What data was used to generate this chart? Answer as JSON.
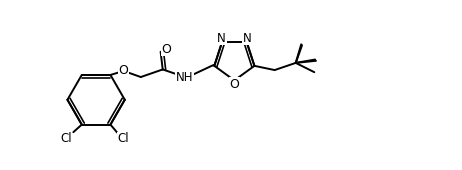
{
  "background_color": "#ffffff",
  "line_color": "#000000",
  "line_width": 1.4,
  "font_size": 8.5,
  "figsize": [
    4.62,
    1.7
  ],
  "dpi": 100,
  "xlim": [
    -0.3,
    9.8
  ],
  "ylim": [
    -2.2,
    1.8
  ]
}
